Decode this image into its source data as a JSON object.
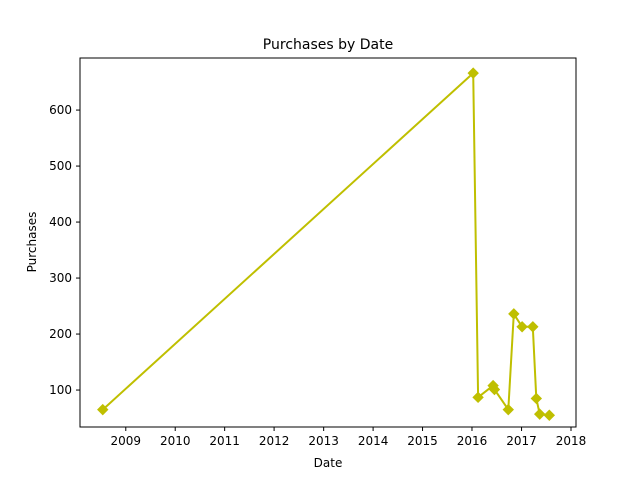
{
  "chart_data": {
    "type": "line",
    "title": "Purchases by Date",
    "xlabel": "Date",
    "ylabel": "Purchases",
    "xlim": [
      "2008-01-29",
      "2018-02-07"
    ],
    "ylim": [
      34,
      693
    ],
    "x_ticks": [
      "2009",
      "2010",
      "2011",
      "2012",
      "2013",
      "2014",
      "2015",
      "2016",
      "2017",
      "2018"
    ],
    "y_ticks": [
      100,
      200,
      300,
      400,
      500,
      600
    ],
    "grid": false,
    "legend": "none",
    "series": [
      {
        "color": "#bfbf00",
        "marker": "diamond",
        "points": [
          {
            "x": "2008-07-15",
            "y": 65
          },
          {
            "x": "2016-01-10",
            "y": 666
          },
          {
            "x": "2016-02-15",
            "y": 87
          },
          {
            "x": "2016-06-05",
            "y": 108
          },
          {
            "x": "2016-06-15",
            "y": 101
          },
          {
            "x": "2016-09-25",
            "y": 65
          },
          {
            "x": "2016-11-05",
            "y": 236
          },
          {
            "x": "2017-01-05",
            "y": 213
          },
          {
            "x": "2017-03-25",
            "y": 213
          },
          {
            "x": "2017-04-20",
            "y": 85
          },
          {
            "x": "2017-05-15",
            "y": 57
          },
          {
            "x": "2017-07-25",
            "y": 55
          }
        ]
      }
    ]
  }
}
